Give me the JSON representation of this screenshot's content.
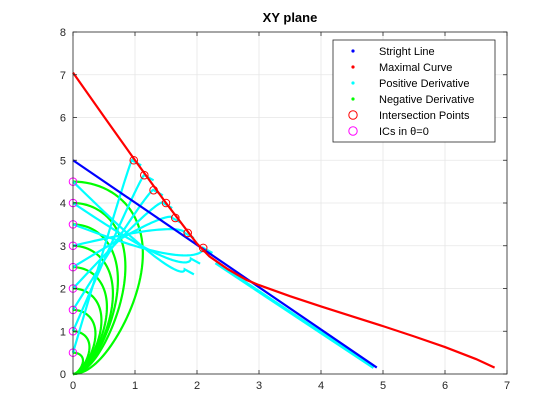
{
  "chart_data": {
    "type": "line",
    "title": "XY plane",
    "xlabel": "",
    "ylabel": "",
    "xlim": [
      0,
      7
    ],
    "ylim": [
      0,
      8
    ],
    "x_ticks": [
      "0",
      "1",
      "2",
      "3",
      "4",
      "5",
      "6",
      "7"
    ],
    "y_ticks": [
      "0",
      "1",
      "2",
      "3",
      "4",
      "5",
      "6",
      "7",
      "8"
    ],
    "grid": true,
    "legend_position": "top-right",
    "legend": [
      {
        "label": "Stright Line",
        "marker": "dot",
        "color": "#0000ff"
      },
      {
        "label": "Maximal Curve",
        "marker": "dot",
        "color": "#ff0000"
      },
      {
        "label": "Positive Derivative",
        "marker": "dot",
        "color": "#00ffff"
      },
      {
        "label": "Negative Derivative",
        "marker": "dot",
        "color": "#00ff00"
      },
      {
        "label": "Intersection Points",
        "marker": "circle",
        "color": "#ff0000"
      },
      {
        "label": "ICs in θ=0",
        "marker": "circle",
        "color": "#ff00ff"
      }
    ],
    "series": [
      {
        "name": "Stright Line",
        "color": "#0000ff",
        "x": [
          0,
          4.9
        ],
        "y": [
          5.0,
          0.15
        ]
      },
      {
        "name": "Maximal Curve",
        "color": "#ff0000",
        "x": [
          0,
          0.5,
          1.0,
          1.5,
          2.0,
          2.2,
          2.5,
          2.8,
          3.0,
          3.5,
          4.0,
          4.5,
          5.0,
          5.5,
          6.0,
          6.5,
          6.8
        ],
        "y": [
          7.05,
          6.02,
          5.0,
          4.0,
          3.05,
          2.75,
          2.45,
          2.2,
          2.08,
          1.82,
          1.58,
          1.35,
          1.12,
          0.88,
          0.63,
          0.35,
          0.15
        ]
      },
      {
        "name": "Positive Derivative",
        "color": "#00ffff",
        "arcs": [
          {
            "y0": 0.5,
            "xt": 0.95,
            "yt": 5.0
          },
          {
            "y0": 1.0,
            "xt": 1.15,
            "yt": 4.65
          },
          {
            "y0": 1.5,
            "xt": 1.3,
            "yt": 4.3
          },
          {
            "y0": 2.0,
            "xt": 1.45,
            "yt": 4.0
          },
          {
            "y0": 2.5,
            "xt": 1.6,
            "yt": 3.65
          },
          {
            "y0": 3.0,
            "xt": 1.8,
            "yt": 3.3
          },
          {
            "y0": 3.5,
            "xt": 2.1,
            "yt": 2.95
          },
          {
            "y0": 4.0,
            "xt": 1.9,
            "yt": 2.7
          },
          {
            "y0": 4.5,
            "xt": 1.8,
            "yt": 2.45
          }
        ],
        "tail": {
          "x": [
            2.3,
            4.85
          ],
          "y": [
            2.6,
            0.15
          ]
        }
      },
      {
        "name": "Negative Derivative",
        "color": "#00ff00",
        "loops": [
          {
            "y_top": 0.5,
            "x_max": 0.2
          },
          {
            "y_top": 1.0,
            "x_max": 0.33
          },
          {
            "y_top": 1.5,
            "x_max": 0.45
          },
          {
            "y_top": 2.0,
            "x_max": 0.57
          },
          {
            "y_top": 2.5,
            "x_max": 0.68
          },
          {
            "y_top": 3.0,
            "x_max": 0.8
          },
          {
            "y_top": 3.5,
            "x_max": 0.9
          },
          {
            "y_top": 4.0,
            "x_max": 1.05
          },
          {
            "y_top": 4.5,
            "x_max": 1.4
          }
        ]
      },
      {
        "name": "Intersection Points",
        "color": "#ff0000",
        "x": [
          0.98,
          1.15,
          1.3,
          1.5,
          1.65,
          1.85,
          2.1
        ],
        "y": [
          5.0,
          4.65,
          4.3,
          4.0,
          3.65,
          3.3,
          2.95
        ]
      },
      {
        "name": "ICs in θ=0",
        "color": "#ff00ff",
        "x": [
          0,
          0,
          0,
          0,
          0,
          0,
          0,
          0,
          0
        ],
        "y": [
          0.5,
          1.0,
          1.5,
          2.0,
          2.5,
          3.0,
          3.5,
          4.0,
          4.5
        ]
      }
    ]
  }
}
